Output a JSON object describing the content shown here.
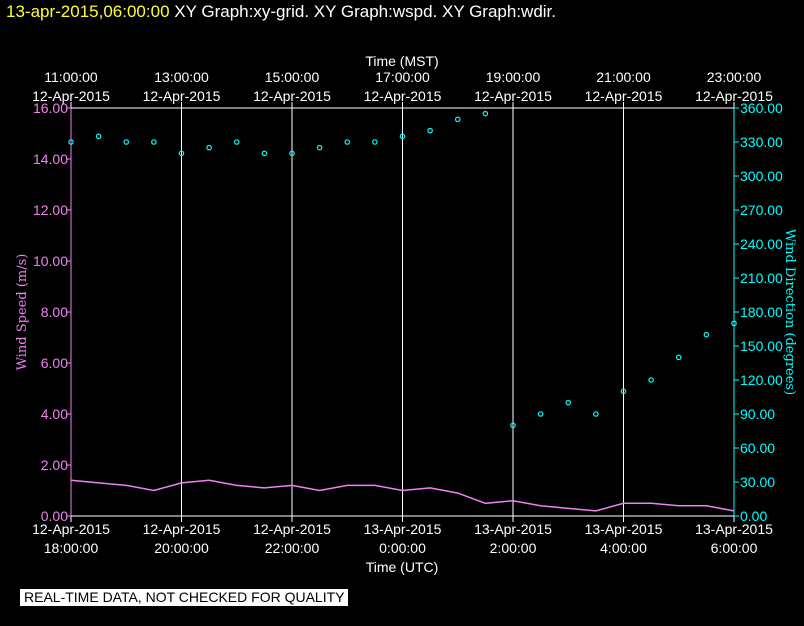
{
  "header": {
    "timestamp": "13-apr-2015,06:00:00",
    "graphs": "XY Graph:xy-grid.  XY Graph:wspd.  XY Graph:wdir."
  },
  "banner": "REAL-TIME DATA, NOT CHECKED FOR QUALITY",
  "colors": {
    "background": "#000000",
    "wind_speed": "#ee82ee",
    "wind_direction": "#00ffff",
    "grid": "#ffffff",
    "timestamp": "#ffff33"
  },
  "chart_data": {
    "type": "scatter",
    "title": "",
    "top_axis": {
      "label": "Time (MST)",
      "ticks": [
        {
          "time": "11:00:00",
          "date": "12-Apr-2015"
        },
        {
          "time": "13:00:00",
          "date": "12-Apr-2015"
        },
        {
          "time": "15:00:00",
          "date": "12-Apr-2015"
        },
        {
          "time": "17:00:00",
          "date": "12-Apr-2015"
        },
        {
          "time": "19:00:00",
          "date": "12-Apr-2015"
        },
        {
          "time": "21:00:00",
          "date": "12-Apr-2015"
        },
        {
          "time": "23:00:00",
          "date": "12-Apr-2015"
        }
      ]
    },
    "bottom_axis": {
      "label": "Time (UTC)",
      "ticks": [
        {
          "date": "12-Apr-2015",
          "time": "18:00:00"
        },
        {
          "date": "12-Apr-2015",
          "time": "20:00:00"
        },
        {
          "date": "12-Apr-2015",
          "time": "22:00:00"
        },
        {
          "date": "13-Apr-2015",
          "time": "0:00:00"
        },
        {
          "date": "13-Apr-2015",
          "time": "2:00:00"
        },
        {
          "date": "13-Apr-2015",
          "time": "4:00:00"
        },
        {
          "date": "13-Apr-2015",
          "time": "6:00:00"
        }
      ]
    },
    "xlim_utc": [
      "2015-04-12T18:00",
      "2015-04-13T06:00"
    ],
    "grid": "vertical lines at every other hour",
    "left_axis": {
      "label": "Wind Speed (m/s)",
      "ylim": [
        0,
        16
      ],
      "ticks": [
        "0.00",
        "2.00",
        "4.00",
        "6.00",
        "8.00",
        "10.00",
        "12.00",
        "14.00",
        "16.00"
      ]
    },
    "right_axis": {
      "label": "Wind Direction (degrees)",
      "ylim": [
        0,
        360
      ],
      "ticks": [
        "0.00",
        "30.00",
        "60.00",
        "90.00",
        "120.00",
        "150.00",
        "180.00",
        "210.00",
        "240.00",
        "270.00",
        "300.00",
        "330.00",
        "360.00"
      ]
    },
    "series": [
      {
        "axis": "left",
        "style": "line",
        "x_utc": [
          "2015-04-12T18:00",
          "2015-04-12T18:30",
          "2015-04-12T19:00",
          "2015-04-12T19:30",
          "2015-04-12T20:00",
          "2015-04-12T20:30",
          "2015-04-12T21:00",
          "2015-04-12T21:30",
          "2015-04-12T22:00",
          "2015-04-12T22:30",
          "2015-04-12T23:00",
          "2015-04-12T23:30",
          "2015-04-13T00:00",
          "2015-04-13T00:30",
          "2015-04-13T01:00",
          "2015-04-13T01:30",
          "2015-04-13T02:00",
          "2015-04-13T02:30",
          "2015-04-13T03:00",
          "2015-04-13T03:30",
          "2015-04-13T04:00",
          "2015-04-13T04:30",
          "2015-04-13T05:00",
          "2015-04-13T05:30",
          "2015-04-13T06:00"
        ],
        "values": [
          1.4,
          1.3,
          1.2,
          1.0,
          1.3,
          1.4,
          1.2,
          1.1,
          1.2,
          1.0,
          1.2,
          1.2,
          1.0,
          1.1,
          0.9,
          0.5,
          0.6,
          0.4,
          0.3,
          0.2,
          0.5,
          0.5,
          0.4,
          0.4,
          0.2
        ]
      },
      {
        "axis": "right",
        "style": "scatter",
        "x_utc": [
          "2015-04-12T18:00",
          "2015-04-12T18:30",
          "2015-04-12T19:00",
          "2015-04-12T19:30",
          "2015-04-12T20:00",
          "2015-04-12T20:30",
          "2015-04-12T21:00",
          "2015-04-12T21:30",
          "2015-04-12T22:00",
          "2015-04-12T22:30",
          "2015-04-12T23:00",
          "2015-04-12T23:30",
          "2015-04-13T00:00",
          "2015-04-13T00:30",
          "2015-04-13T01:00",
          "2015-04-13T01:30",
          "2015-04-13T02:00",
          "2015-04-13T02:30",
          "2015-04-13T03:00",
          "2015-04-13T03:30",
          "2015-04-13T04:00",
          "2015-04-13T04:30",
          "2015-04-13T05:00",
          "2015-04-13T05:30",
          "2015-04-13T06:00"
        ],
        "values": [
          330,
          335,
          330,
          330,
          320,
          325,
          330,
          320,
          320,
          325,
          330,
          330,
          335,
          340,
          350,
          355,
          80,
          90,
          100,
          90,
          110,
          120,
          140,
          160,
          170
        ]
      }
    ]
  }
}
